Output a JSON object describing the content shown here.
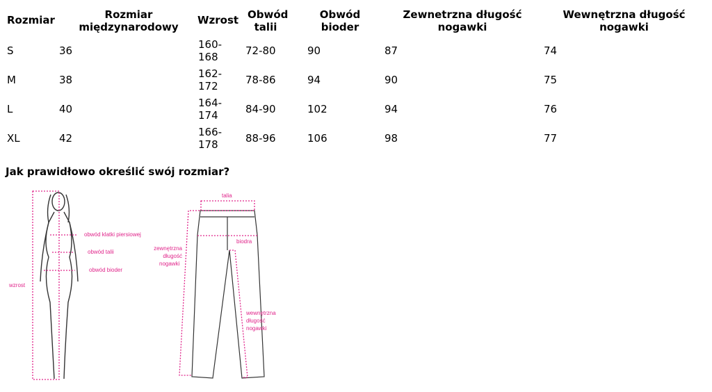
{
  "table": {
    "headers": [
      "Rozmiar",
      "Rozmiar międzynarodowy",
      "Wzrost",
      "Obwód talii",
      "Obwód bioder",
      "Zewnetrzna długość nogawki",
      "Wewnętrzna długość nogawki"
    ],
    "rows": [
      [
        "S",
        "36",
        "160-168",
        "72-80",
        "90",
        "87",
        "74"
      ],
      [
        "M",
        "38",
        "162-172",
        "78-86",
        "94",
        "90",
        "75"
      ],
      [
        "L",
        "40",
        "164-174",
        "84-90",
        "102",
        "94",
        "76"
      ],
      [
        "XL",
        "42",
        "166-178",
        "88-96",
        "106",
        "98",
        "77"
      ]
    ]
  },
  "question": "Jak prawidłowo określić swój rozmiar?",
  "diagram": {
    "accent": "#e0248a",
    "body": {
      "chest": "obwód klatki piersiowej",
      "waist": "obwód talii",
      "hips": "obwód bioder",
      "height": "wzrost"
    },
    "pants": {
      "waist": "talia",
      "hips": "biodra",
      "outer": [
        "zewnętrzna",
        "długość",
        "nogawki"
      ],
      "inner": [
        "wewnętrzna",
        "długość",
        "nogawki"
      ]
    }
  }
}
